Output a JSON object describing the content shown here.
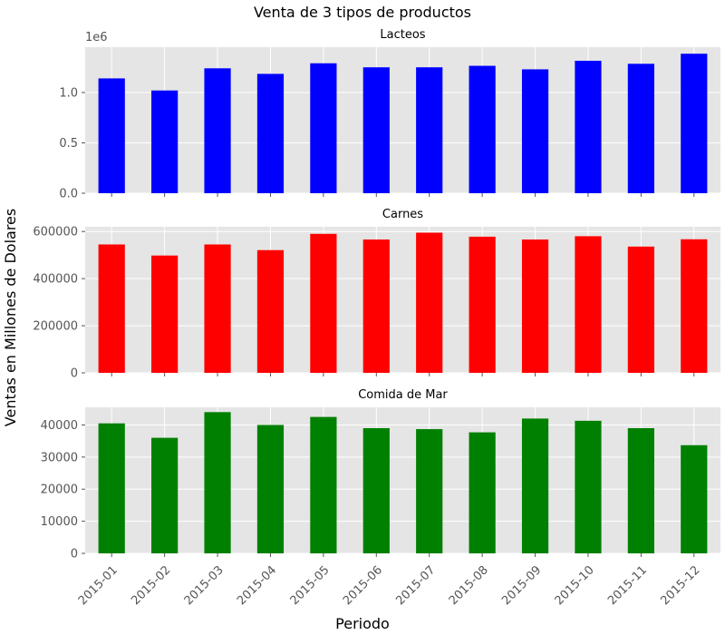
{
  "chart_data": {
    "type": "bar",
    "title": "Venta de 3 tipos de productos",
    "xlabel": "Periodo",
    "ylabel": "Ventas en Millones de Dolares",
    "categories": [
      "2015-01",
      "2015-02",
      "2015-03",
      "2015-04",
      "2015-05",
      "2015-06",
      "2015-07",
      "2015-08",
      "2015-09",
      "2015-10",
      "2015-11",
      "2015-12"
    ],
    "grid": true,
    "panels": [
      {
        "title": "Lacteos",
        "color": "#0000ff",
        "ylim": [
          0,
          1450000
        ],
        "yticks": [
          0,
          500000,
          1000000
        ],
        "ytick_labels": [
          "0.0",
          "0.5",
          "1.0"
        ],
        "offset_label": "1e6",
        "values": [
          1140000,
          1020000,
          1240000,
          1185000,
          1290000,
          1250000,
          1250000,
          1265000,
          1230000,
          1315000,
          1285000,
          1385000
        ]
      },
      {
        "title": "Carnes",
        "color": "#ff0000",
        "ylim": [
          0,
          620000
        ],
        "yticks": [
          0,
          200000,
          400000,
          600000
        ],
        "ytick_labels": [
          "0",
          "200000",
          "400000",
          "600000"
        ],
        "offset_label": "",
        "values": [
          545000,
          498000,
          545000,
          521000,
          590000,
          566000,
          595000,
          578000,
          566000,
          580000,
          536000,
          567000
        ]
      },
      {
        "title": "Comida de Mar",
        "color": "#008000",
        "ylim": [
          0,
          45500
        ],
        "yticks": [
          0,
          10000,
          20000,
          30000,
          40000
        ],
        "ytick_labels": [
          "0",
          "10000",
          "20000",
          "30000",
          "40000"
        ],
        "offset_label": "",
        "values": [
          40500,
          36000,
          44000,
          40000,
          42500,
          39000,
          38700,
          37700,
          42000,
          41300,
          39000,
          33700
        ]
      }
    ]
  }
}
